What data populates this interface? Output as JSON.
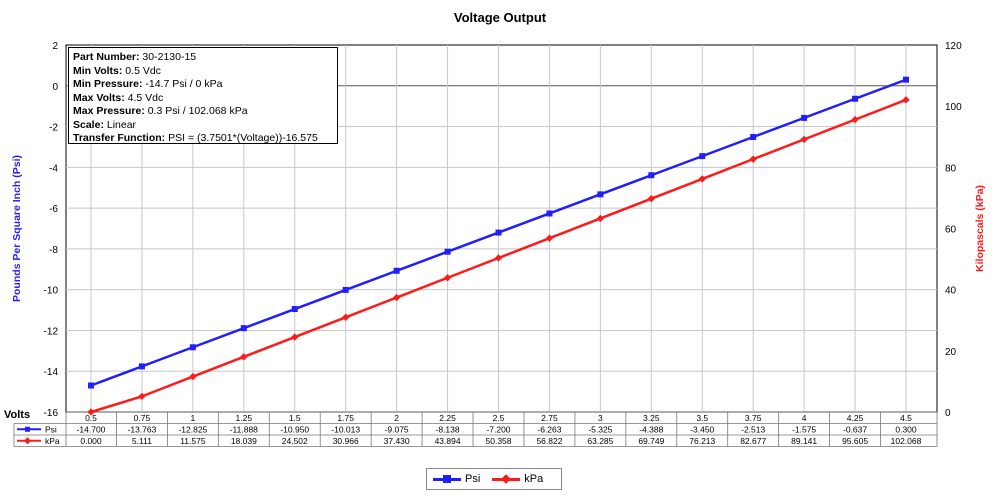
{
  "colors": {
    "psi": "#1f1fff",
    "kpa": "#ff1a1a",
    "grid": "#c8c8c8",
    "axis": "#000000"
  },
  "info": {
    "part_number_label": "Part Number:",
    "part_number": " 30-2130-15",
    "min_volts_label": "Min Volts:",
    "min_volts": " 0.5 Vdc",
    "min_pressure_label": "Min Pressure:",
    "min_pressure": " -14.7 Psi / 0 kPa",
    "max_volts_label": "Max Volts:",
    "max_volts": " 4.5 Vdc",
    "max_pressure_label": "Max Pressure:",
    "max_pressure": " 0.3 Psi / 102.068 kPa",
    "scale_label": "Scale:",
    "scale": " Linear",
    "transfer_label": "Transfer Function:",
    "transfer": " PSI = (3.7501*(Voltage))-16.575"
  },
  "chart_data": {
    "type": "line",
    "title": "Voltage Output",
    "xlabel": "Volts",
    "ylabel": "Pounds Per Square Inch (Psi)",
    "y2label": "Kilopascals (kPa)",
    "ylim": [
      -16,
      2
    ],
    "y2lim": [
      0,
      120
    ],
    "yticks": [
      "2",
      "0",
      "-2",
      "-4",
      "-6",
      "-8",
      "-10",
      "-12",
      "-14",
      "-16"
    ],
    "y2ticks": [
      "120",
      "100",
      "80",
      "60",
      "40",
      "20",
      "0"
    ],
    "grid": true,
    "legend_position": "bottom",
    "categories": [
      "0.5",
      "0.75",
      "1",
      "1.25",
      "1.5",
      "1.75",
      "2",
      "2.25",
      "2.5",
      "2.75",
      "3",
      "3.25",
      "3.5",
      "3.75",
      "4",
      "4.25",
      "4.5"
    ],
    "series": [
      {
        "name": "Psi",
        "axis": "left",
        "values": [
          -14.7,
          -13.763,
          -12.825,
          -11.888,
          -10.95,
          -10.013,
          -9.075,
          -8.138,
          -7.2,
          -6.263,
          -5.325,
          -4.388,
          -3.45,
          -2.513,
          -1.575,
          -0.637,
          0.3
        ],
        "labels": [
          "-14.700",
          "-13.763",
          "-12.825",
          "-11.888",
          "-10.950",
          "-10.013",
          "-9.075",
          "-8.138",
          "-7.200",
          "-6.263",
          "-5.325",
          "-4.388",
          "-3.450",
          "-2.513",
          "-1.575",
          "-0.637",
          "0.300"
        ]
      },
      {
        "name": "kPa",
        "axis": "right",
        "values": [
          0,
          5.111,
          11.575,
          18.039,
          24.502,
          30.966,
          37.43,
          43.894,
          50.358,
          56.822,
          63.285,
          69.749,
          76.213,
          82.677,
          89.141,
          95.605,
          102.068
        ],
        "labels": [
          "0.000",
          "5.111",
          "11.575",
          "18.039",
          "24.502",
          "30.966",
          "37.430",
          "43.894",
          "50.358",
          "56.822",
          "63.285",
          "69.749",
          "76.213",
          "82.677",
          "89.141",
          "95.605",
          "102.068"
        ]
      }
    ]
  }
}
